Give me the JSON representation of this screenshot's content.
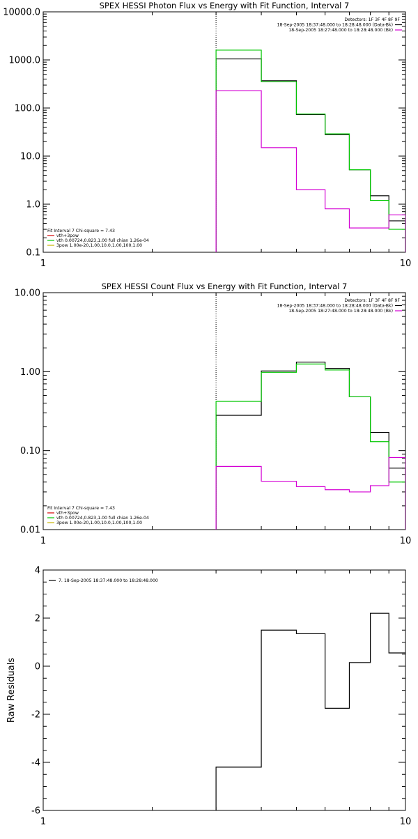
{
  "chart_data": [
    {
      "type": "line",
      "title": "SPEX HESSI Photon Flux vs Energy with Fit Function, Interval 7",
      "xscale": "log",
      "yscale": "log",
      "xlim": [
        1,
        10
      ],
      "ylim": [
        0.1,
        10000
      ],
      "x_tick_labels": [
        {
          "value": 1,
          "label": "1"
        },
        {
          "value": 10,
          "label": "10"
        }
      ],
      "y_tick_labels": [
        {
          "value": 0.1,
          "label": "0.1"
        },
        {
          "value": 1,
          "label": "1.0"
        },
        {
          "value": 10,
          "label": "10.0"
        },
        {
          "value": 100,
          "label": "100.0"
        },
        {
          "value": 1000,
          "label": "1000.0"
        },
        {
          "value": 10000,
          "label": "10000.0"
        }
      ],
      "vline": 3,
      "legend_top_right": [
        {
          "text": "Detectors: 1F 3F 4F 8F 9F",
          "color": "#000000"
        },
        {
          "text": "18-Sep-2005 18:37:48.000 to 18:28:48.000 (Data-Bk)",
          "color": "#000000"
        },
        {
          "text": "18-Sep-2005 18:27:48.000 to 18:28:48.000 (Bk)",
          "color": "#d400d4"
        }
      ],
      "legend_bottom_left": [
        {
          "text": "Fit Interval 7    Chi-square = 7.43",
          "color": "#000000"
        },
        {
          "text": "vth+3pow",
          "color": "#d40000"
        },
        {
          "text": "vth 0.00724,0.823,1.00  full chian 1.26e-04",
          "color": "#00c800"
        },
        {
          "text": "3pow 1.00e-20,1.00,10.0,1.00,100,1.00",
          "color": "#c8b400"
        }
      ],
      "series": [
        {
          "color": "#000000",
          "edges": [
            3,
            4,
            5,
            6,
            7,
            8,
            9,
            10
          ],
          "values": [
            1050,
            370,
            73,
            28,
            5.2,
            1.5,
            0.45
          ]
        },
        {
          "color": "#00c800",
          "edges": [
            3,
            4,
            5,
            6,
            7,
            8,
            9,
            10
          ],
          "values": [
            1600,
            350,
            75,
            29,
            5.2,
            1.2,
            0.3
          ]
        },
        {
          "color": "#d400d4",
          "edges": [
            3,
            4,
            5,
            6,
            7,
            8,
            9,
            10
          ],
          "values": [
            230,
            15,
            2,
            0.8,
            0.32,
            0.32,
            0.6
          ]
        }
      ]
    },
    {
      "type": "line",
      "title": "SPEX HESSI Count Flux vs Energy with Fit Function, Interval 7",
      "xscale": "log",
      "yscale": "log",
      "xlim": [
        1,
        10
      ],
      "ylim": [
        0.01,
        10
      ],
      "x_tick_labels": [
        {
          "value": 1,
          "label": "1"
        },
        {
          "value": 10,
          "label": "10"
        }
      ],
      "y_tick_labels": [
        {
          "value": 0.01,
          "label": "0.01"
        },
        {
          "value": 0.1,
          "label": "0.10"
        },
        {
          "value": 1,
          "label": "1.00"
        },
        {
          "value": 10,
          "label": "10.00"
        }
      ],
      "vline": 3,
      "legend_top_right": [
        {
          "text": "Detectors: 1F 3F 4F 8F 9F",
          "color": "#000000"
        },
        {
          "text": "18-Sep-2005 18:37:48.000 to 18:28:48.000 (Data-Bk)",
          "color": "#000000"
        },
        {
          "text": "18-Sep-2005 18:27:48.000 to 18:28:48.000 (Bk)",
          "color": "#d400d4"
        }
      ],
      "legend_bottom_left": [
        {
          "text": "Fit Interval 7    Chi-square = 7.43",
          "color": "#000000"
        },
        {
          "text": "vth+3pow",
          "color": "#d40000"
        },
        {
          "text": "vth 0.00724,0.823,1.00  full chian 1.26e-04",
          "color": "#00c800"
        },
        {
          "text": "3pow 1.00e-20,1.00,10.0,1.00,100,1.00",
          "color": "#c8b400"
        }
      ],
      "series": [
        {
          "color": "#000000",
          "edges": [
            3,
            4,
            5,
            6,
            7,
            8,
            9,
            10
          ],
          "values": [
            0.28,
            1.02,
            1.32,
            1.1,
            0.48,
            0.17,
            0.06
          ]
        },
        {
          "color": "#00c800",
          "edges": [
            3,
            4,
            5,
            6,
            7,
            8,
            9,
            10
          ],
          "values": [
            0.42,
            0.98,
            1.25,
            1.05,
            0.48,
            0.13,
            0.04
          ]
        },
        {
          "color": "#d400d4",
          "edges": [
            3,
            4,
            5,
            6,
            7,
            8,
            9,
            10
          ],
          "values": [
            0.063,
            0.041,
            0.035,
            0.032,
            0.03,
            0.036,
            0.082
          ]
        }
      ]
    },
    {
      "type": "line",
      "title": "",
      "ylabel": "Raw Residuals",
      "xscale": "log",
      "yscale": "linear",
      "xlim": [
        1,
        10
      ],
      "ylim": [
        -6,
        4
      ],
      "x_tick_labels": [
        {
          "value": 1,
          "label": "1"
        },
        {
          "value": 10,
          "label": "10"
        }
      ],
      "y_tick_labels": [
        {
          "value": -6,
          "label": "-6"
        },
        {
          "value": -4,
          "label": "-4"
        },
        {
          "value": -2,
          "label": "-2"
        },
        {
          "value": 0,
          "label": "0"
        },
        {
          "value": 2,
          "label": "2"
        },
        {
          "value": 4,
          "label": "4"
        }
      ],
      "y_minor_step": 0.5,
      "legend_top_left": [
        {
          "text": "7. 18-Sep-2005 18:37:48.000 to 18:28:48.000",
          "color": "#000000"
        }
      ],
      "series": [
        {
          "color": "#000000",
          "edges": [
            3,
            4,
            5,
            6,
            7,
            8,
            9,
            10
          ],
          "values": [
            -4.2,
            1.5,
            1.35,
            -1.75,
            0.15,
            2.2,
            0.55
          ]
        }
      ]
    }
  ]
}
